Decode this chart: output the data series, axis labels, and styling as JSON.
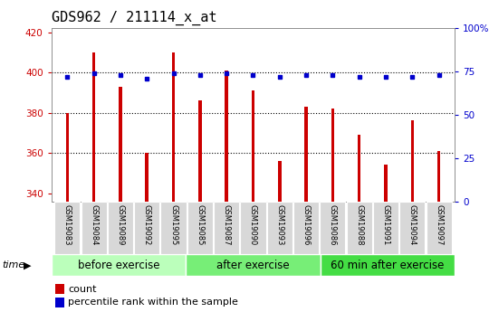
{
  "title": "GDS962 / 211114_x_at",
  "samples": [
    "GSM19083",
    "GSM19084",
    "GSM19089",
    "GSM19092",
    "GSM19095",
    "GSM19085",
    "GSM19087",
    "GSM19090",
    "GSM19093",
    "GSM19096",
    "GSM19086",
    "GSM19088",
    "GSM19091",
    "GSM19094",
    "GSM19097"
  ],
  "counts": [
    380,
    410,
    393,
    360,
    410,
    386,
    401,
    391,
    356,
    383,
    382,
    369,
    354,
    376,
    361
  ],
  "percentile_ranks": [
    72,
    74,
    73,
    71,
    74,
    73,
    74,
    73,
    72,
    73,
    73,
    72,
    72,
    72,
    73
  ],
  "groups": [
    {
      "label": "before exercise",
      "start": 0,
      "end": 5
    },
    {
      "label": "after exercise",
      "start": 5,
      "end": 10
    },
    {
      "label": "60 min after exercise",
      "start": 10,
      "end": 15
    }
  ],
  "group_colors": [
    "#bbffbb",
    "#77ee77",
    "#44dd44"
  ],
  "ylim_left": [
    336,
    422
  ],
  "ylim_right": [
    0,
    100
  ],
  "yticks_left": [
    340,
    360,
    380,
    400,
    420
  ],
  "yticks_right": [
    0,
    25,
    50,
    75,
    100
  ],
  "ytick_right_labels": [
    "0",
    "25",
    "50",
    "75",
    "100%"
  ],
  "bar_color": "#cc0000",
  "dot_color": "#0000cc",
  "bar_width": 0.12,
  "bar_baseline": 336,
  "bg_color": "#ffffff",
  "tick_label_bg": "#cccccc",
  "left_tick_color": "#cc0000",
  "right_tick_color": "#0000cc",
  "title_fontsize": 11,
  "label_fontsize": 7,
  "group_label_fontsize": 8.5
}
